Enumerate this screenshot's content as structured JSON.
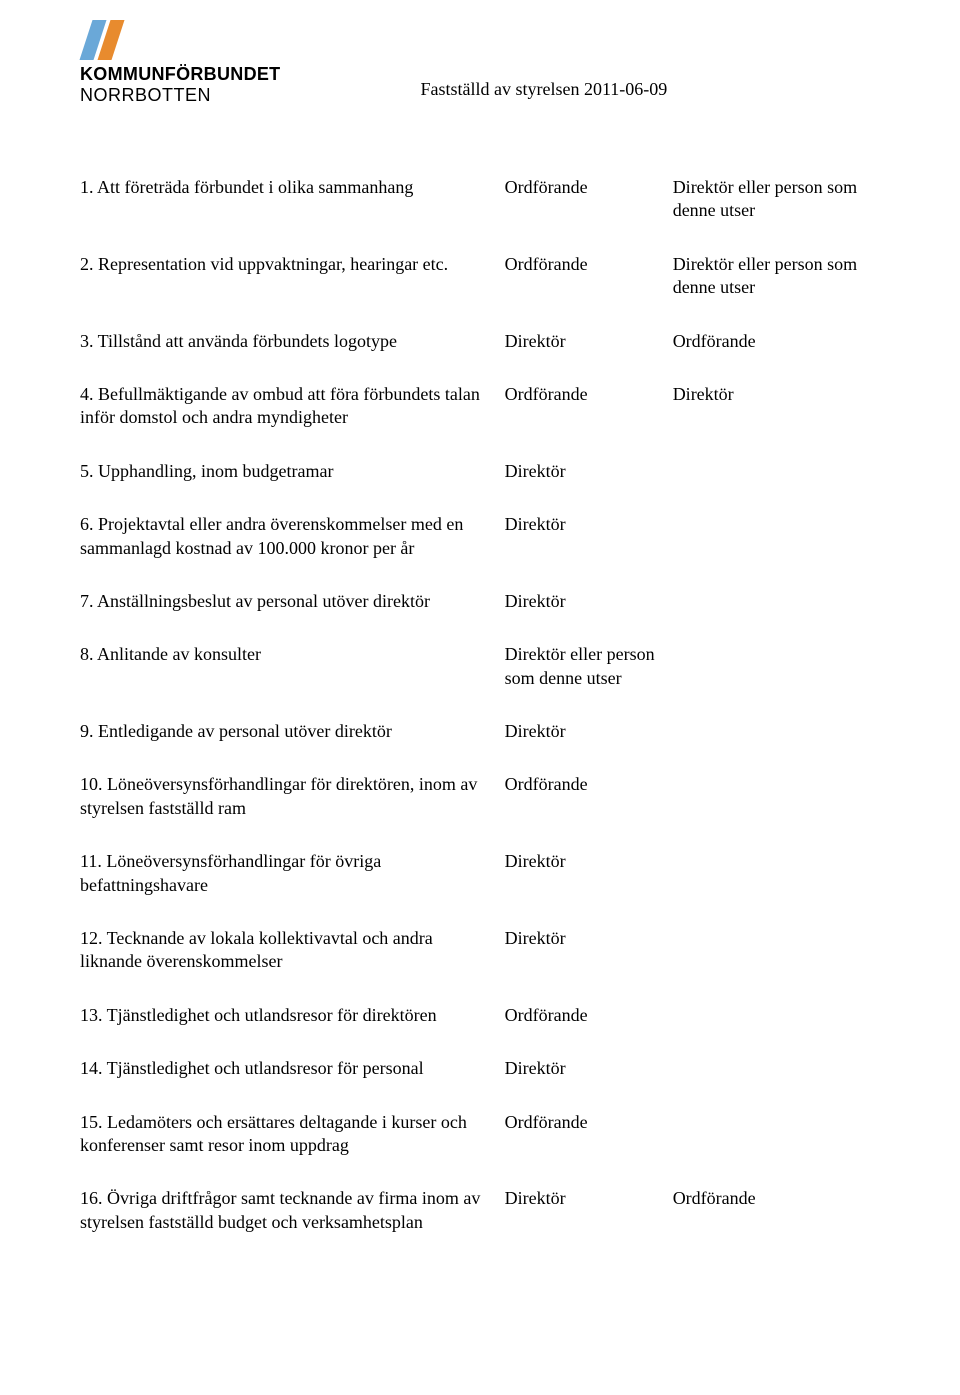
{
  "org": {
    "line1": "KOMMUNFÖRBUNDET",
    "line2": "NORRBOTTEN",
    "stripe_colors": [
      "#6aa8d8",
      "#e88b2e"
    ]
  },
  "header_text": "Fastställd av styrelsen 2011-06-09",
  "rows": [
    {
      "desc": "1. Att företräda förbundet i olika sammanhang",
      "a": "Ordförande",
      "b": "Direktör eller person som denne utser"
    },
    {
      "desc": "2. Representation vid uppvaktningar, hearingar etc.",
      "a": "Ordförande",
      "b": "Direktör eller person som denne utser"
    },
    {
      "desc": "3. Tillstånd att använda förbundets logotype",
      "a": "Direktör",
      "b": "Ordförande"
    },
    {
      "desc": "4. Befullmäktigande av ombud att föra förbundets talan inför domstol och andra myndigheter",
      "a": "Ordförande",
      "b": "Direktör"
    },
    {
      "desc": "5. Upphandling, inom budgetramar",
      "a": "Direktör",
      "b": ""
    },
    {
      "desc": "6. Projektavtal eller andra överenskommelser med en sammanlagd kostnad av 100.000 kronor per år",
      "a": "Direktör",
      "b": ""
    },
    {
      "desc": "7. Anställningsbeslut av personal utöver direktör",
      "a": "Direktör",
      "b": ""
    },
    {
      "desc": "8. Anlitande av konsulter",
      "a": "Direktör eller person som denne utser",
      "b": ""
    },
    {
      "desc": "9. Entledigande av personal utöver direktör",
      "a": "Direktör",
      "b": ""
    },
    {
      "desc": "10. Löneöversynsförhandlingar för direktören, inom av styrelsen fastställd ram",
      "a": "Ordförande",
      "b": ""
    },
    {
      "desc": "11. Löneöversynsförhandlingar för övriga befattningshavare",
      "a": "Direktör",
      "b": ""
    },
    {
      "desc": "12. Tecknande av lokala kollektivavtal och andra liknande överenskommelser",
      "a": "Direktör",
      "b": ""
    },
    {
      "desc": "13. Tjänstledighet och utlandsresor för direktören",
      "a": "Ordförande",
      "b": ""
    },
    {
      "desc": "14. Tjänstledighet och utlandsresor för personal",
      "a": "Direktör",
      "b": ""
    },
    {
      "desc": "15. Ledamöters och ersättares deltagande i kurser och konferenser samt resor inom uppdrag",
      "a": "Ordförande",
      "b": ""
    },
    {
      "desc": "16. Övriga driftfrågor samt tecknande av firma inom av styrelsen fastställd budget och verksamhetsplan",
      "a": "Direktör",
      "b": "Ordförande"
    }
  ]
}
